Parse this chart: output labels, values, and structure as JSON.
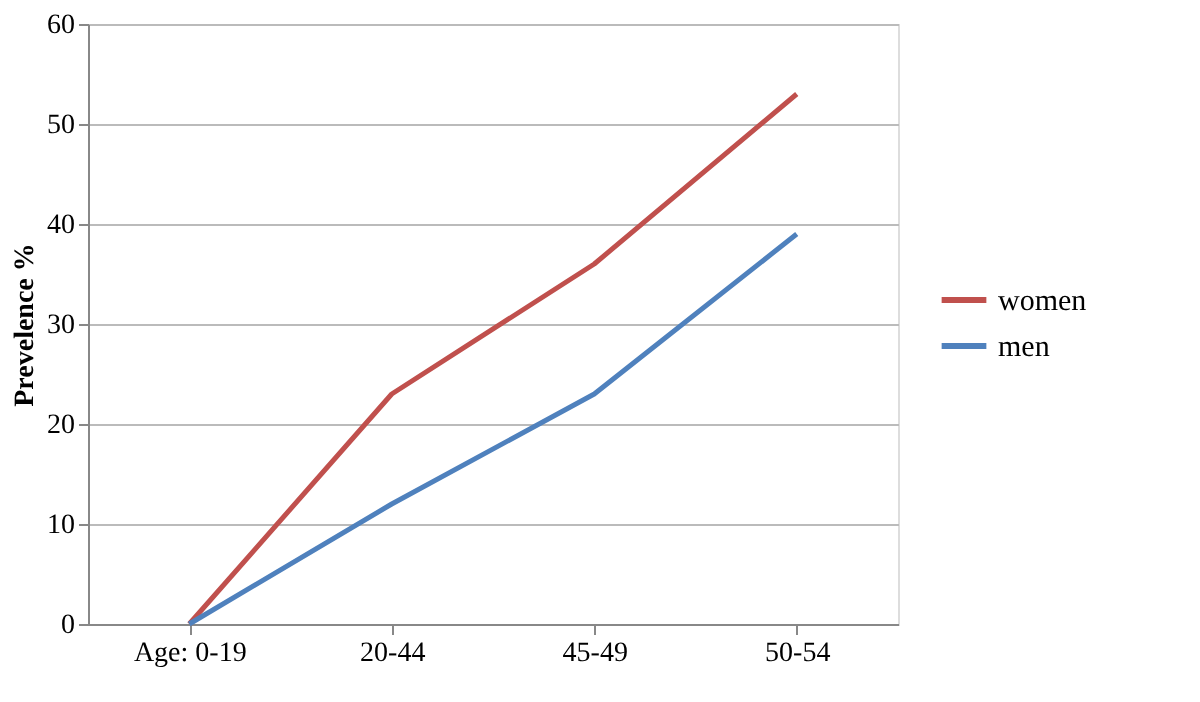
{
  "chart_data": {
    "type": "line",
    "ylabel": "Prevelence %",
    "categories": [
      "Age: 0-19",
      "20-44",
      "45-49",
      "50-54"
    ],
    "series": [
      {
        "name": "women",
        "color": "#c0504d",
        "values": [
          0,
          23,
          36,
          53
        ]
      },
      {
        "name": "men",
        "color": "#4f81bd",
        "values": [
          0,
          12,
          23,
          39
        ]
      }
    ],
    "ylim": [
      0,
      60
    ],
    "yticks": [
      0,
      10,
      20,
      30,
      40,
      50,
      60
    ],
    "grid": "y",
    "legend": "right",
    "marker": "none",
    "line_style": "solid"
  }
}
